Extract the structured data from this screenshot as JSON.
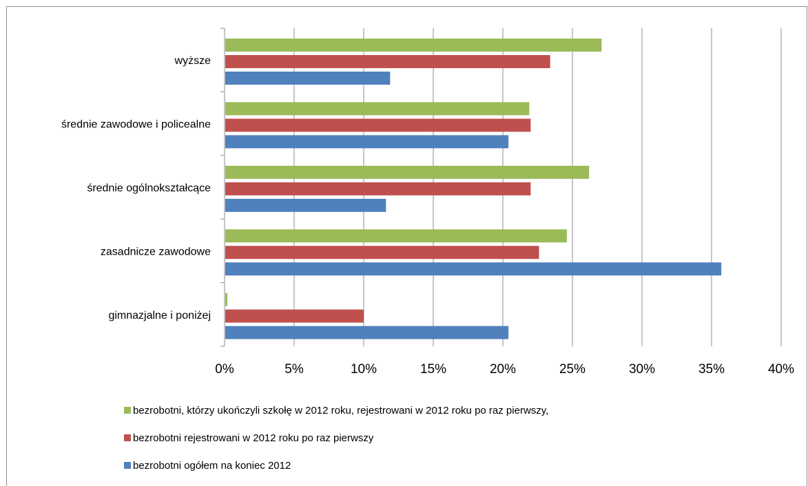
{
  "chart_data": {
    "type": "bar",
    "orientation": "horizontal",
    "categories": [
      "wyższe",
      "średnie zawodowe i policealne",
      "średnie ogólnokształcące",
      "zasadnicze zawodowe",
      "gimnazjalne i poniżej"
    ],
    "series": [
      {
        "name": "bezrobotni, którzy ukończyli szkołę w 2012 roku, rejestrowani w 2012 roku po raz pierwszy,",
        "color": "#9BBB59",
        "values": [
          27.1,
          21.9,
          26.2,
          24.6,
          0.2
        ]
      },
      {
        "name": "bezrobotni rejestrowani w 2012 roku po raz pierwszy",
        "color": "#C0504D",
        "values": [
          23.4,
          22.0,
          22.0,
          22.6,
          10.0
        ]
      },
      {
        "name": "bezrobotni ogółem na koniec 2012",
        "color": "#4F81BD",
        "values": [
          11.9,
          20.4,
          11.6,
          35.7,
          20.4
        ]
      }
    ],
    "x_ticks": [
      "0%",
      "5%",
      "10%",
      "15%",
      "20%",
      "25%",
      "30%",
      "35%",
      "40%"
    ],
    "xlim": [
      0,
      40
    ],
    "grid": "vertical",
    "legend_position": "bottom"
  }
}
